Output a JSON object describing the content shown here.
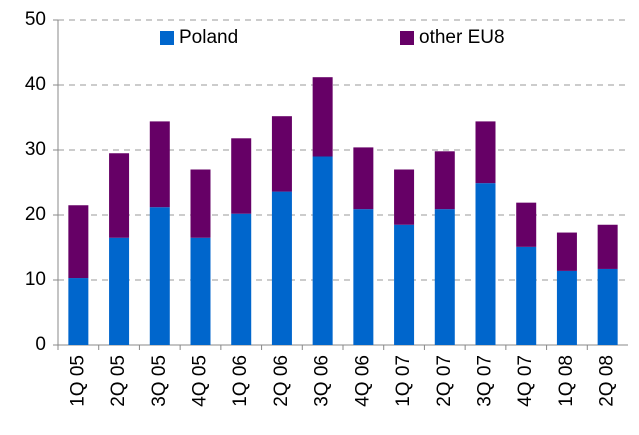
{
  "chart_data": {
    "type": "stacked_bar",
    "categories": [
      "1Q 05",
      "2Q 05",
      "3Q 05",
      "4Q 05",
      "1Q 06",
      "2Q 06",
      "3Q 06",
      "4Q 06",
      "1Q 07",
      "2Q 07",
      "3Q 07",
      "4Q 07",
      "1Q 08",
      "2Q 08"
    ],
    "series": [
      {
        "name": "Poland",
        "color": "#0066cc",
        "values": [
          10.3,
          16.5,
          21.2,
          16.5,
          20.2,
          23.6,
          29.0,
          20.9,
          18.5,
          20.9,
          24.9,
          15.1,
          11.4,
          11.7
        ]
      },
      {
        "name": "other EU8",
        "color": "#660066",
        "values": [
          11.2,
          13.0,
          13.2,
          10.5,
          11.6,
          11.6,
          12.2,
          9.5,
          8.5,
          8.9,
          9.5,
          6.8,
          5.9,
          6.8
        ]
      }
    ],
    "ylim": [
      0,
      50
    ],
    "yticks": [
      0,
      10,
      20,
      30,
      40,
      50
    ],
    "grid": true,
    "legend": "top"
  }
}
